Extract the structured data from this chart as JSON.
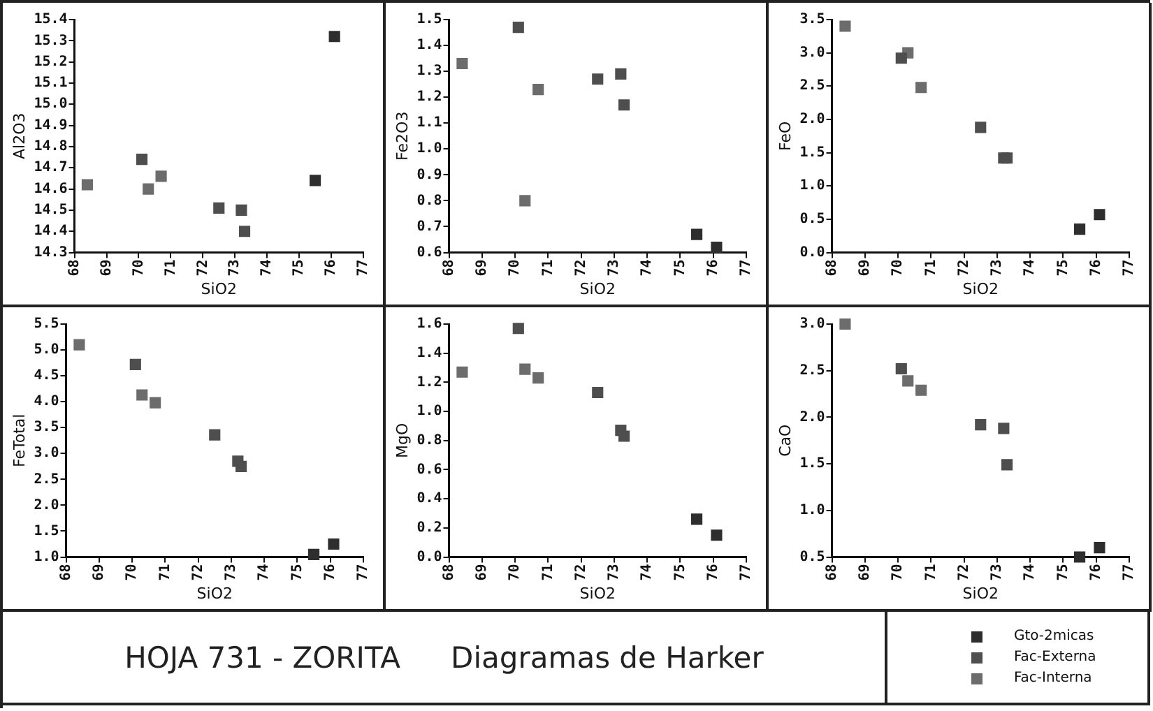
{
  "chart_data": [
    {
      "type": "scatter",
      "xlabel": "SiO2",
      "ylabel": "Al2O3",
      "xlim": [
        68,
        77
      ],
      "xticks": [
        68,
        69,
        70,
        71,
        72,
        73,
        74,
        75,
        76,
        77
      ],
      "ylim": [
        14.3,
        15.4
      ],
      "yticks": [
        14.3,
        14.4,
        14.5,
        14.6,
        14.7,
        14.8,
        14.9,
        {
          "value": 15.0,
          "label": "15.0"
        },
        15.1,
        15.2,
        15.3,
        15.4
      ],
      "marker": "square",
      "grid": false,
      "legend": "bottom right",
      "series": [
        {
          "name": "Gto-2micas",
          "color": "#2e2e2e",
          "x": [
            75.5,
            76.1
          ],
          "values": [
            14.64,
            15.32
          ]
        },
        {
          "name": "Fac-Externa",
          "color": "#4e4e4e",
          "x": [
            70.1,
            72.5,
            73.2,
            73.3
          ],
          "values": [
            14.74,
            14.51,
            14.5,
            14.4
          ]
        },
        {
          "name": "Fac-Interna",
          "color": "#6c6c6c",
          "x": [
            68.4,
            70.3,
            70.7
          ],
          "values": [
            14.62,
            14.6,
            14.66
          ]
        }
      ]
    },
    {
      "type": "scatter",
      "xlabel": "SiO2",
      "ylabel": "Fe2O3",
      "xlim": [
        68,
        77
      ],
      "xticks": [
        68,
        69,
        70,
        71,
        72,
        73,
        74,
        75,
        76,
        77
      ],
      "ylim": [
        0.6,
        1.5
      ],
      "yticks": [
        0.6,
        0.7,
        0.8,
        0.9,
        {
          "value": 1.0,
          "label": "1.0"
        },
        1.1,
        1.2,
        1.3,
        1.4,
        1.5
      ],
      "marker": "square",
      "grid": false,
      "series": [
        {
          "color": "#2e2e2e",
          "x": [
            75.5,
            76.1
          ],
          "values": [
            0.67,
            0.62
          ]
        },
        {
          "color": "#4e4e4e",
          "x": [
            70.1,
            72.5,
            73.2,
            73.3
          ],
          "values": [
            1.47,
            1.27,
            1.29,
            1.17
          ]
        },
        {
          "color": "#6c6c6c",
          "x": [
            68.4,
            70.3,
            70.7
          ],
          "values": [
            1.33,
            0.8,
            1.23
          ]
        }
      ]
    },
    {
      "type": "scatter",
      "xlabel": "SiO2",
      "ylabel": "FeO",
      "xlim": [
        68,
        77
      ],
      "xticks": [
        68,
        69,
        70,
        71,
        72,
        73,
        74,
        75,
        76,
        77
      ],
      "ylim": [
        0,
        3.5
      ],
      "yticks": [
        {
          "value": 0,
          "label": "0.0"
        },
        0.5,
        {
          "value": 1,
          "label": "1.0"
        },
        1.5,
        {
          "value": 2,
          "label": "2.0"
        },
        2.5,
        {
          "value": 3,
          "label": "3.0"
        },
        3.5
      ],
      "marker": "square",
      "grid": false,
      "series": [
        {
          "color": "#2e2e2e",
          "x": [
            75.5,
            76.1
          ],
          "values": [
            0.35,
            0.57
          ]
        },
        {
          "color": "#4e4e4e",
          "x": [
            70.1,
            72.5,
            73.2,
            73.3
          ],
          "values": [
            2.92,
            1.88,
            1.42,
            1.42
          ]
        },
        {
          "color": "#6c6c6c",
          "x": [
            68.4,
            70.3,
            70.7
          ],
          "values": [
            3.4,
            3.0,
            2.48
          ]
        }
      ]
    },
    {
      "type": "scatter",
      "xlabel": "SiO2",
      "ylabel": "FeTotal",
      "xlim": [
        68,
        77
      ],
      "xticks": [
        68,
        69,
        70,
        71,
        72,
        73,
        74,
        75,
        76,
        77
      ],
      "ylim": [
        1,
        5.5
      ],
      "yticks": [
        {
          "value": 1,
          "label": "1.0"
        },
        1.5,
        {
          "value": 2,
          "label": "2.0"
        },
        2.5,
        {
          "value": 3,
          "label": "3.0"
        },
        3.5,
        {
          "value": 4,
          "label": "4.0"
        },
        4.5,
        {
          "value": 5,
          "label": "5.0"
        },
        5.5
      ],
      "marker": "square",
      "grid": false,
      "series": [
        {
          "color": "#2e2e2e",
          "x": [
            75.5,
            76.1
          ],
          "values": [
            1.05,
            1.25
          ]
        },
        {
          "color": "#4e4e4e",
          "x": [
            70.1,
            72.5,
            73.2,
            73.3
          ],
          "values": [
            4.72,
            3.36,
            2.85,
            2.75
          ]
        },
        {
          "color": "#6c6c6c",
          "x": [
            68.4,
            70.3,
            70.7
          ],
          "values": [
            5.1,
            4.13,
            3.98
          ]
        }
      ]
    },
    {
      "type": "scatter",
      "xlabel": "SiO2",
      "ylabel": "MgO",
      "xlim": [
        68,
        77
      ],
      "xticks": [
        68,
        69,
        70,
        71,
        72,
        73,
        74,
        75,
        76,
        77
      ],
      "ylim": [
        0,
        1.6
      ],
      "yticks": [
        {
          "value": 0,
          "label": "0.0"
        },
        0.2,
        0.4,
        0.6,
        0.8,
        {
          "value": 1,
          "label": "1.0"
        },
        1.2,
        1.4,
        1.6
      ],
      "marker": "square",
      "grid": false,
      "series": [
        {
          "color": "#2e2e2e",
          "x": [
            75.5,
            76.1
          ],
          "values": [
            0.26,
            0.15
          ]
        },
        {
          "color": "#4e4e4e",
          "x": [
            70.1,
            72.5,
            73.2,
            73.3
          ],
          "values": [
            1.57,
            1.13,
            0.87,
            0.83
          ]
        },
        {
          "color": "#6c6c6c",
          "x": [
            68.4,
            70.3,
            70.7
          ],
          "values": [
            1.27,
            1.29,
            1.23
          ]
        }
      ]
    },
    {
      "type": "scatter",
      "xlabel": "SiO2",
      "ylabel": "CaO",
      "xlim": [
        68,
        77
      ],
      "xticks": [
        68,
        69,
        70,
        71,
        72,
        73,
        74,
        75,
        76,
        77
      ],
      "ylim": [
        0.5,
        3
      ],
      "yticks": [
        0.5,
        {
          "value": 1,
          "label": "1.0"
        },
        1.5,
        {
          "value": 2,
          "label": "2.0"
        },
        2.5,
        {
          "value": 3,
          "label": "3.0"
        }
      ],
      "marker": "square",
      "grid": false,
      "series": [
        {
          "color": "#2e2e2e",
          "x": [
            75.5,
            76.1
          ],
          "values": [
            0.5,
            0.6
          ]
        },
        {
          "color": "#4e4e4e",
          "x": [
            70.1,
            72.5,
            73.2,
            73.3
          ],
          "values": [
            2.52,
            1.92,
            1.88,
            1.49
          ]
        },
        {
          "color": "#6c6c6c",
          "x": [
            68.4,
            70.3,
            70.7
          ],
          "values": [
            3.0,
            2.39,
            2.29
          ]
        }
      ]
    },
    {
      "type": "other",
      "title": "HOJA 731 - ZORITA",
      "subtitle": "Diagramas de Harker"
    }
  ]
}
